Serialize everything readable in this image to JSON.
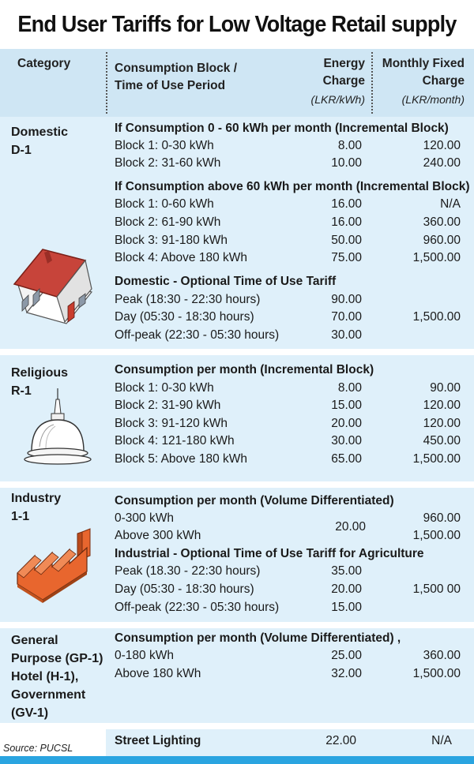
{
  "title": "End User Tariffs for Low Voltage Retail supply",
  "header": {
    "category": "Category",
    "block_line1": "Consumption Block /",
    "block_line2": "Time of Use Period",
    "energy_line1": "Energy",
    "energy_line2": "Charge",
    "energy_unit": "(LKR/kWh)",
    "fixed_line1": "Monthly Fixed",
    "fixed_line2": "Charge",
    "fixed_unit": "(LKR/month)"
  },
  "domestic": {
    "category_line1": "Domestic",
    "category_line2": "D-1",
    "sec1_title": "If Consumption 0 - 60 kWh per month (Incremental Block)",
    "sec1_rows": [
      {
        "label": "Block 1: 0-30 kWh",
        "energy": "8.00",
        "fixed": "120.00"
      },
      {
        "label": "Block 2: 31-60 kWh",
        "energy": "10.00",
        "fixed": "240.00"
      }
    ],
    "sec2_title": "If Consumption above 60 kWh per month (Incremental Block)",
    "sec2_rows": [
      {
        "label": "Block 1: 0-60 kWh",
        "energy": "16.00",
        "fixed": "N/A"
      },
      {
        "label": "Block 2: 61-90 kWh",
        "energy": "16.00",
        "fixed": "360.00"
      },
      {
        "label": "Block 3: 91-180 kWh",
        "energy": "50.00",
        "fixed": "960.00"
      },
      {
        "label": "Block 4: Above 180 kWh",
        "energy": "75.00",
        "fixed": "1,500.00"
      }
    ],
    "sec3_title": "Domestic - Optional Time of Use Tariff",
    "sec3_rows": [
      {
        "label": "Peak (18:30 - 22:30 hours)",
        "energy": "90.00",
        "fixed": ""
      },
      {
        "label": "Day (05:30 - 18:30 hours)",
        "energy": "70.00",
        "fixed": "1,500.00"
      },
      {
        "label": "Off-peak (22:30 - 05:30 hours)",
        "energy": "30.00",
        "fixed": ""
      }
    ]
  },
  "religious": {
    "category_line1": "Religious",
    "category_line2": "R-1",
    "sec_title": "Consumption per month (Incremental Block)",
    "rows": [
      {
        "label": "Block 1: 0-30 kWh",
        "energy": "8.00",
        "fixed": "90.00"
      },
      {
        "label": "Block 2: 31-90 kWh",
        "energy": "15.00",
        "fixed": "120.00"
      },
      {
        "label": "Block 3: 91-120 kWh",
        "energy": "20.00",
        "fixed": "120.00"
      },
      {
        "label": "Block 4: 121-180 kWh",
        "energy": "30.00",
        "fixed": "450.00"
      },
      {
        "label": "Block 5: Above 180 kWh",
        "energy": "65.00",
        "fixed": "1,500.00"
      }
    ]
  },
  "industry": {
    "category_line1": "Industry",
    "category_line2": "1-1",
    "sec1_title": "Consumption per month (Volume Differentiated)",
    "vol_row1_label": "0-300 kWh",
    "vol_row2_label": "Above 300 kWh",
    "vol_energy": "20.00",
    "vol_row1_fixed": "960.00",
    "vol_row2_fixed": "1,500.00",
    "sec2_title": "Industrial - Optional Time of Use Tariff for Agriculture",
    "sec2_rows": [
      {
        "label": "Peak (18.30 - 22:30 hours)",
        "energy": "35.00",
        "fixed": ""
      },
      {
        "label": "Day (05:30 - 18:30 hours)",
        "energy": "20.00",
        "fixed": "1,500 00"
      },
      {
        "label": "Off-peak (22:30 - 05:30 hours)",
        "energy": "15.00",
        "fixed": ""
      }
    ]
  },
  "general": {
    "category_lines": [
      "General",
      "Purpose (GP-1)",
      "Hotel (H-1),",
      "Government",
      "(GV-1)"
    ],
    "sec_title": "Consumption per month (Volume Differentiated) ,",
    "rows": [
      {
        "label": "0-180 kWh",
        "energy": "25.00",
        "fixed": "360.00"
      },
      {
        "label": "Above 180 kWh",
        "energy": "32.00",
        "fixed": "1,500.00"
      }
    ]
  },
  "street": {
    "label": "Street Lighting",
    "energy": "22.00",
    "fixed": "N/A"
  },
  "source": "Source: PUCSL",
  "colors": {
    "light_band": "#dff0fa",
    "header_band": "#cfe6f4",
    "accent_bar": "#2aa4e0",
    "roof_red": "#c0392b",
    "factory_orange": "#e8662e"
  }
}
